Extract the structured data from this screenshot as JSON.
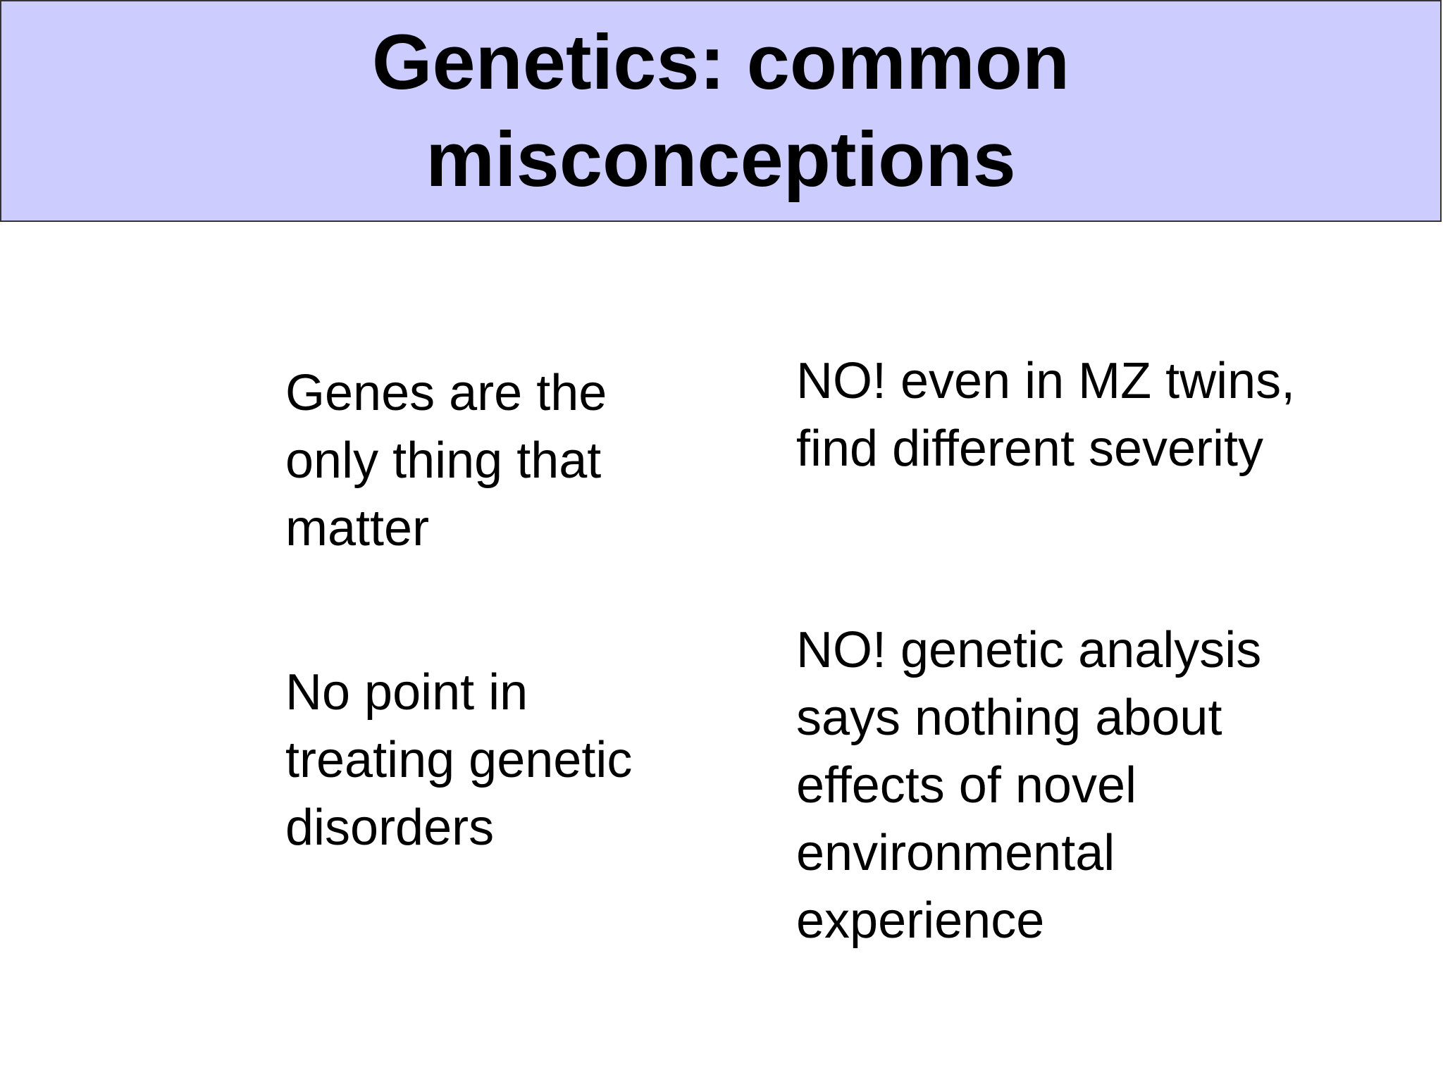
{
  "slide": {
    "title_lines": [
      "Genetics: common",
      "misconceptions"
    ],
    "rows": [
      {
        "misconception": [
          "Genes are the",
          "only thing that",
          "matter"
        ],
        "response": [
          "NO! even in MZ twins,",
          "find different severity"
        ]
      },
      {
        "misconception": [
          "No point in",
          "treating genetic",
          "disorders"
        ],
        "response": [
          "NO! genetic analysis",
          "says nothing about",
          "effects of novel",
          "environmental",
          "experience"
        ]
      }
    ]
  },
  "colors": {
    "title_background": "#ccccff",
    "title_border": "#333333",
    "text": "#000000",
    "page_background": "#ffffff"
  }
}
